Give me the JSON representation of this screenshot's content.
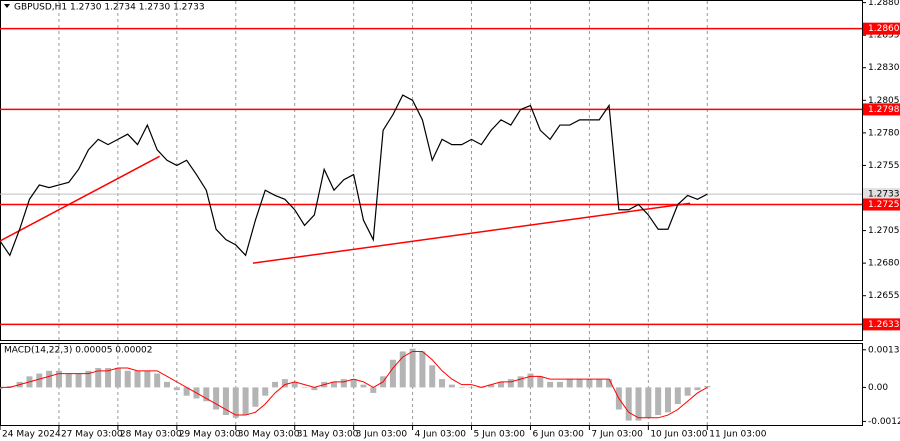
{
  "chart_data": [
    {
      "type": "line",
      "title": "GBPUSD,H1 1.2730 1.2734 1.2730 1.2733",
      "x": [
        0,
        4,
        8,
        12,
        16,
        20,
        24,
        28,
        32,
        36,
        40,
        44,
        48,
        52,
        56,
        60,
        64,
        68,
        72,
        76,
        80,
        84,
        88,
        92,
        96,
        100,
        104,
        108,
        112,
        116,
        120,
        124,
        128,
        132,
        136,
        140,
        144,
        148,
        152,
        156,
        160,
        164,
        168,
        172,
        176,
        180,
        184,
        188,
        192,
        196,
        200,
        204,
        208,
        212,
        216,
        220,
        224,
        228,
        232,
        236,
        240,
        244,
        248,
        252,
        256,
        260,
        264,
        268,
        272,
        276,
        280,
        284,
        288
      ],
      "series": [
        {
          "name": "GBPUSD",
          "color": "#000000",
          "values": [
            1.2697,
            1.2686,
            1.2706,
            1.2729,
            1.274,
            1.2738,
            1.274,
            1.2742,
            1.2752,
            1.2767,
            1.2775,
            1.2771,
            1.2775,
            1.2779,
            1.2771,
            1.2786,
            1.2767,
            1.2759,
            1.2755,
            1.2759,
            1.2748,
            1.2736,
            1.2706,
            1.2698,
            1.2694,
            1.2686,
            1.2713,
            1.2736,
            1.2732,
            1.2729,
            1.2721,
            1.2709,
            1.2717,
            1.2752,
            1.2736,
            1.2744,
            1.2748,
            1.2713,
            1.2698,
            1.2782,
            1.2794,
            1.2809,
            1.2805,
            1.279,
            1.2759,
            1.2775,
            1.2771,
            1.2771,
            1.2775,
            1.2771,
            1.2782,
            1.279,
            1.2786,
            1.2798,
            1.2801,
            1.2782,
            1.2775,
            1.2786,
            1.2786,
            1.279,
            1.279,
            1.279,
            1.2801,
            1.2721,
            1.2721,
            1.2725,
            1.2717,
            1.2706,
            1.2706,
            1.2725,
            1.2732,
            1.2729,
            1.2733
          ]
        }
      ],
      "xlim": [
        0,
        351
      ],
      "xticks": [
        {
          "value": 0,
          "label": "24 May 2024"
        },
        {
          "value": 24,
          "label": "27 May 03:00"
        },
        {
          "value": 48,
          "label": "28 May 03:00"
        },
        {
          "value": 72,
          "label": "29 May 03:00"
        },
        {
          "value": 96,
          "label": "30 May 03:00"
        },
        {
          "value": 120,
          "label": "31 May 03:00"
        },
        {
          "value": 144,
          "label": "3 Jun 03:00"
        },
        {
          "value": 168,
          "label": "4 Jun 03:00"
        },
        {
          "value": 192,
          "label": "5 Jun 03:00"
        },
        {
          "value": 216,
          "label": "6 Jun 03:00"
        },
        {
          "value": 240,
          "label": "7 Jun 03:00"
        },
        {
          "value": 264,
          "label": "10 Jun 03:00"
        },
        {
          "value": 288,
          "label": "11 Jun 03:00"
        }
      ],
      "ylim": [
        1.2621,
        1.2882
      ],
      "yticks": [
        {
          "value": 1.288,
          "label": "1.2880"
        },
        1.2855,
        {
          "value": 1.283,
          "label": "1.2830"
        },
        1.2805,
        {
          "value": 1.278,
          "label": "1.2780"
        },
        1.2755,
        {
          "value": 1.273,
          "label": "1.2730"
        },
        1.2705,
        {
          "value": 1.268,
          "label": "1.2680"
        },
        1.2655
      ],
      "levels": [
        {
          "value": 1.286,
          "label": "1.2860"
        },
        1.2798,
        1.2725,
        1.2633
      ],
      "level_color": "#ff0000",
      "current_price": 1.2733,
      "trendlines": [
        {
          "x": [
            0,
            65
          ],
          "y": [
            1.2697,
            1.2762
          ]
        },
        {
          "x": [
            103,
            281
          ],
          "y": [
            1.268,
            1.2726
          ]
        }
      ]
    },
    {
      "type": "macd",
      "title": "MACD(14,22,3) 0.00005 0.00002",
      "series": [
        {
          "name": "MACD",
          "color": "#b4b4b4",
          "values": [
            -5e-05,
            5e-05,
            0.0002,
            0.0004,
            0.0005,
            0.0006,
            0.0006,
            0.0005,
            0.0005,
            0.0006,
            0.0007,
            0.0007,
            0.0007,
            0.0006,
            0.0006,
            0.0006,
            0.0005,
            0.0002,
            -0.0001,
            -0.0003,
            -0.0004,
            -0.0005,
            -0.0008,
            -0.001,
            -0.0011,
            -0.001,
            -0.0007,
            -0.0003,
            0.0002,
            0.0003,
            0.0002,
            0,
            -0.0001,
            0.0002,
            0.0002,
            0.0003,
            0.0003,
            0.0001,
            -0.0002,
            0.0004,
            0.001,
            0.0013,
            0.0014,
            0.0013,
            0.0008,
            0.0003,
            0.0001,
            0,
            0,
            0,
            0.0001,
            0.0002,
            0.0003,
            0.0004,
            0.0005,
            0.0004,
            0.0002,
            0.0002,
            0.0003,
            0.0003,
            0.0003,
            0.0003,
            0.0003,
            -0.0008,
            -0.0012,
            -0.0012,
            -0.0011,
            -0.001,
            -0.0009,
            -0.0006,
            -0.0003,
            -0.0001,
            5e-05
          ]
        },
        {
          "name": "Signal",
          "color": "#ff0000",
          "values": [
            0,
            0,
            0.0001,
            0.0002,
            0.0003,
            0.0004,
            0.0005,
            0.0005,
            0.0005,
            0.0005,
            0.0006,
            0.0006,
            0.0007,
            0.0007,
            0.0006,
            0.0006,
            0.0006,
            0.0004,
            0.0002,
            0,
            -0.0002,
            -0.0004,
            -0.0006,
            -0.0008,
            -0.001,
            -0.001,
            -0.0009,
            -0.0006,
            -0.0002,
            0.0001,
            0.0002,
            0.0001,
            0,
            0.0001,
            0.0002,
            0.0002,
            0.0003,
            0.0002,
            0,
            0.0002,
            0.0007,
            0.0011,
            0.0013,
            0.0013,
            0.001,
            0.0006,
            0.0003,
            0.0001,
            0.0001,
            0,
            0.0001,
            0.0002,
            0.0002,
            0.0003,
            0.0004,
            0.0004,
            0.0003,
            0.0003,
            0.0003,
            0.0003,
            0.0003,
            0.0003,
            0.0003,
            -0.0004,
            -0.0009,
            -0.0011,
            -0.0011,
            -0.0011,
            -0.001,
            -0.0008,
            -0.0005,
            -0.0002,
            0
          ]
        }
      ],
      "ylim": [
        -0.00136,
        0.00157
      ],
      "yticks": [
        0.00136,
        {
          "value": 0,
          "label": "0.00"
        },
        -0.00123
      ]
    }
  ]
}
